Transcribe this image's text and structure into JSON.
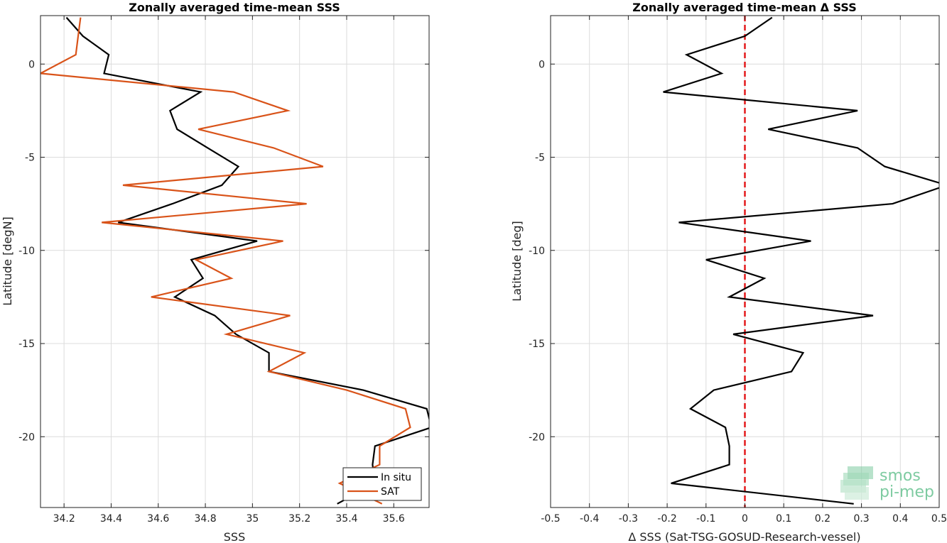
{
  "chart_data": [
    {
      "type": "line",
      "title": "Zonally averaged time-mean SSS",
      "xlabel": "SSS",
      "ylabel": "Latitude [degN]",
      "xlim": [
        34.1,
        35.75
      ],
      "ylim": [
        -23.8,
        2.6
      ],
      "xticks": [
        34.2,
        34.4,
        34.6,
        34.8,
        35,
        35.2,
        35.4,
        35.6
      ],
      "xtick_labels": [
        "34.2",
        "34.4",
        "34.6",
        "34.8",
        "35",
        "35.2",
        "35.4",
        "35.6"
      ],
      "yticks": [
        0,
        -5,
        -10,
        -15,
        -20
      ],
      "ytick_labels": [
        "0",
        "-5",
        "-10",
        "-15",
        "-20"
      ],
      "grid": true,
      "legend": "bottom-right",
      "series": [
        {
          "name": "In situ",
          "color": "#000000",
          "points": [
            [
              34.21,
              2.5
            ],
            [
              34.28,
              1.5
            ],
            [
              34.39,
              0.5
            ],
            [
              34.37,
              -0.5
            ],
            [
              34.78,
              -1.5
            ],
            [
              34.65,
              -2.5
            ],
            [
              34.68,
              -3.5
            ],
            [
              34.81,
              -4.5
            ],
            [
              34.94,
              -5.5
            ],
            [
              34.87,
              -6.5
            ],
            [
              34.66,
              -7.5
            ],
            [
              34.43,
              -8.5
            ],
            [
              35.02,
              -9.5
            ],
            [
              34.74,
              -10.5
            ],
            [
              34.79,
              -11.5
            ],
            [
              34.67,
              -12.5
            ],
            [
              34.84,
              -13.5
            ],
            [
              34.93,
              -14.5
            ],
            [
              35.07,
              -15.5
            ],
            [
              35.07,
              -16.5
            ],
            [
              35.47,
              -17.5
            ],
            [
              35.74,
              -18.5
            ],
            [
              35.76,
              -19.5
            ],
            [
              35.52,
              -20.5
            ],
            [
              35.51,
              -21.5
            ],
            [
              35.52,
              -22.5
            ],
            [
              35.36,
              -23.6
            ]
          ]
        },
        {
          "name": "SAT",
          "color": "#d95319",
          "points": [
            [
              34.27,
              2.5
            ],
            [
              34.26,
              1.5
            ],
            [
              34.25,
              0.5
            ],
            [
              34.1,
              -0.5
            ],
            [
              34.92,
              -1.5
            ],
            [
              35.15,
              -2.5
            ],
            [
              34.77,
              -3.5
            ],
            [
              35.09,
              -4.5
            ],
            [
              35.3,
              -5.5
            ],
            [
              34.45,
              -6.5
            ],
            [
              35.23,
              -7.5
            ],
            [
              34.36,
              -8.5
            ],
            [
              35.13,
              -9.5
            ],
            [
              34.76,
              -10.5
            ],
            [
              34.91,
              -11.5
            ],
            [
              34.57,
              -12.5
            ],
            [
              35.16,
              -13.5
            ],
            [
              34.89,
              -14.5
            ],
            [
              35.22,
              -15.5
            ],
            [
              35.07,
              -16.5
            ],
            [
              35.4,
              -17.5
            ],
            [
              35.65,
              -18.5
            ],
            [
              35.67,
              -19.5
            ],
            [
              35.54,
              -20.5
            ],
            [
              35.54,
              -21.5
            ],
            [
              35.37,
              -22.5
            ],
            [
              35.55,
              -23.6
            ]
          ]
        }
      ]
    },
    {
      "type": "line",
      "title": "Zonally averaged time-mean Δ SSS",
      "xlabel": "Δ SSS (Sat-TSG-GOSUD-Research-vessel)",
      "ylabel": "Latitude [deg]",
      "xlim": [
        -0.5,
        0.5
      ],
      "ylim": [
        -23.8,
        2.6
      ],
      "xticks": [
        -0.5,
        -0.4,
        -0.3,
        -0.2,
        -0.1,
        0,
        0.1,
        0.2,
        0.3,
        0.4,
        0.5
      ],
      "xtick_labels": [
        "-0.5",
        "-0.4",
        "-0.3",
        "-0.2",
        "-0.1",
        "0",
        "0.1",
        "0.2",
        "0.3",
        "0.4",
        "0.5"
      ],
      "yticks": [
        0,
        -5,
        -10,
        -15,
        -20
      ],
      "ytick_labels": [
        "0",
        "-5",
        "-10",
        "-15",
        "-20"
      ],
      "grid": true,
      "zero_line": {
        "x": 0,
        "color": "#e41a1c",
        "style": "dashed"
      },
      "series": [
        {
          "name": "",
          "color": "#000000",
          "points": [
            [
              0.07,
              2.5
            ],
            [
              0.0,
              1.5
            ],
            [
              -0.15,
              0.5
            ],
            [
              -0.06,
              -0.5
            ],
            [
              -0.21,
              -1.5
            ],
            [
              0.29,
              -2.5
            ],
            [
              0.06,
              -3.5
            ],
            [
              0.29,
              -4.5
            ],
            [
              0.36,
              -5.5
            ],
            [
              0.52,
              -6.5
            ],
            [
              0.38,
              -7.5
            ],
            [
              -0.17,
              -8.5
            ],
            [
              0.17,
              -9.5
            ],
            [
              -0.1,
              -10.5
            ],
            [
              0.05,
              -11.5
            ],
            [
              -0.04,
              -12.5
            ],
            [
              0.33,
              -13.5
            ],
            [
              -0.03,
              -14.5
            ],
            [
              0.15,
              -15.5
            ],
            [
              0.12,
              -16.5
            ],
            [
              -0.08,
              -17.5
            ],
            [
              -0.14,
              -18.5
            ],
            [
              -0.05,
              -19.5
            ],
            [
              -0.04,
              -20.5
            ],
            [
              -0.04,
              -21.5
            ],
            [
              -0.19,
              -22.5
            ],
            [
              0.28,
              -23.6
            ]
          ]
        }
      ]
    }
  ],
  "legend": {
    "items": [
      "In situ",
      "SAT"
    ]
  },
  "logo": {
    "line1": "smos",
    "line2": "pi-mep"
  }
}
